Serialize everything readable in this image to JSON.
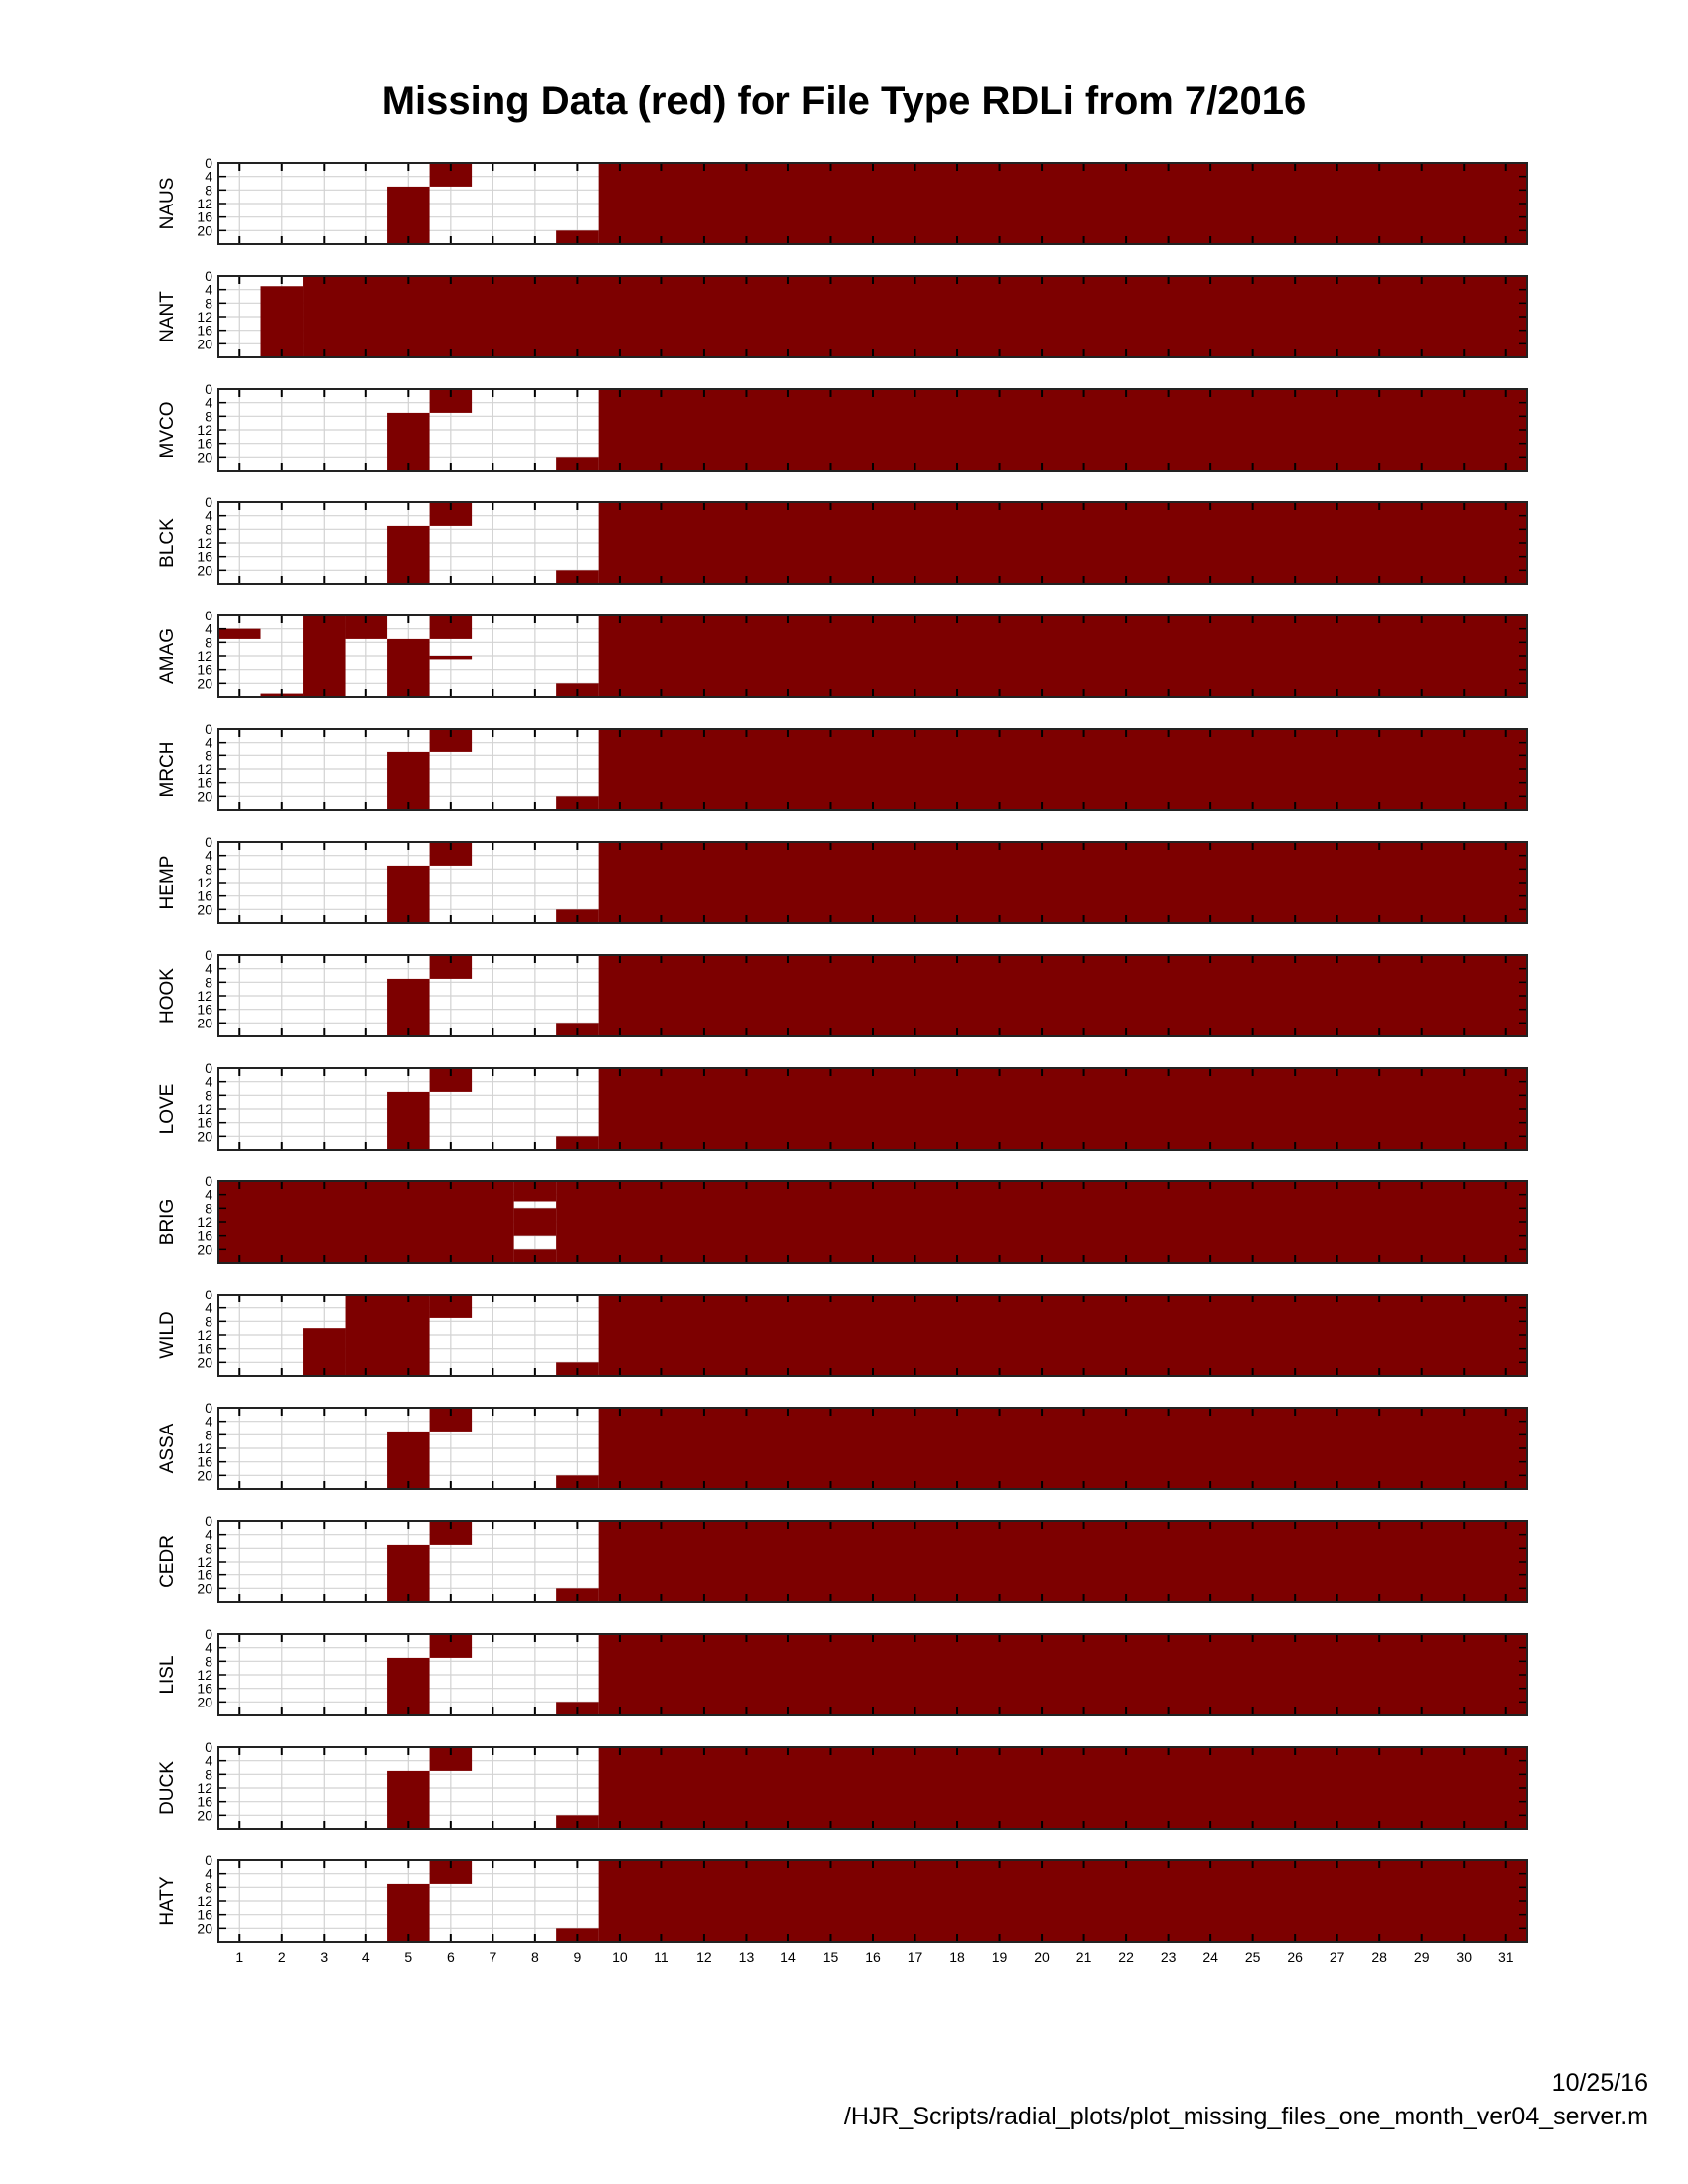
{
  "title": "Missing Data (red) for File Type RDLi from 7/2016",
  "footer": {
    "date": "10/25/16",
    "path": "/HJR_Scripts/radial_plots/plot_missing_files_one_month_ver04_server.m"
  },
  "colors": {
    "missing": "#7d0000",
    "present": "#ffffff",
    "grid": "#d2d2d2"
  },
  "chart_data": {
    "type": "heatmap",
    "title": "Missing Data (red) for File Type RDLi from 7/2016",
    "x_ticks": [
      1,
      2,
      3,
      4,
      5,
      6,
      7,
      8,
      9,
      10,
      11,
      12,
      13,
      14,
      15,
      16,
      17,
      18,
      19,
      20,
      21,
      22,
      23,
      24,
      25,
      26,
      27,
      28,
      29,
      30,
      31
    ],
    "y_ticks": [
      0,
      4,
      8,
      12,
      16,
      20
    ],
    "xlim": [
      0.5,
      31.5
    ],
    "ylim": [
      0,
      24
    ],
    "y_reversed": true,
    "grid": true,
    "missing_color": "#7d0000",
    "value_note": "rectangles list missing (red) blocks as [day_start, day_end, hour_start, hour_end]",
    "panels": [
      {
        "name": "NAUS",
        "missing": [
          [
            4.5,
            5.5,
            7,
            24
          ],
          [
            5.5,
            6.5,
            0,
            7
          ],
          [
            8.5,
            9.5,
            20,
            24
          ],
          [
            9.5,
            31.5,
            0,
            24
          ]
        ]
      },
      {
        "name": "NANT",
        "missing": [
          [
            1.5,
            2.5,
            3,
            24
          ],
          [
            2.5,
            31.5,
            0,
            24
          ]
        ]
      },
      {
        "name": "MVCO",
        "missing": [
          [
            4.5,
            5.5,
            7,
            24
          ],
          [
            5.5,
            6.5,
            0,
            7
          ],
          [
            8.5,
            9.5,
            20,
            24
          ],
          [
            9.5,
            31.5,
            0,
            24
          ]
        ]
      },
      {
        "name": "BLCK",
        "missing": [
          [
            4.5,
            5.5,
            7,
            24
          ],
          [
            5.5,
            6.5,
            0,
            7
          ],
          [
            8.5,
            9.5,
            20,
            24
          ],
          [
            9.5,
            31.5,
            0,
            24
          ]
        ]
      },
      {
        "name": "AMAG",
        "missing": [
          [
            0.5,
            1.5,
            4,
            7
          ],
          [
            1.5,
            2.5,
            23,
            24
          ],
          [
            2.5,
            3.5,
            0,
            24
          ],
          [
            3.5,
            4.5,
            0,
            7
          ],
          [
            4.5,
            5.5,
            7,
            24
          ],
          [
            5.5,
            6.5,
            0,
            7
          ],
          [
            5.5,
            6.5,
            12,
            13
          ],
          [
            8.5,
            9.5,
            20,
            24
          ],
          [
            9.5,
            31.5,
            0,
            24
          ]
        ]
      },
      {
        "name": "MRCH",
        "missing": [
          [
            4.5,
            5.5,
            7,
            24
          ],
          [
            5.5,
            6.5,
            0,
            7
          ],
          [
            8.5,
            9.5,
            20,
            24
          ],
          [
            9.5,
            31.5,
            0,
            24
          ]
        ]
      },
      {
        "name": "HEMP",
        "missing": [
          [
            4.5,
            5.5,
            7,
            24
          ],
          [
            5.5,
            6.5,
            0,
            7
          ],
          [
            8.5,
            9.5,
            20,
            24
          ],
          [
            9.5,
            31.5,
            0,
            24
          ]
        ]
      },
      {
        "name": "HOOK",
        "missing": [
          [
            4.5,
            5.5,
            7,
            24
          ],
          [
            5.5,
            6.5,
            0,
            7
          ],
          [
            8.5,
            9.5,
            20,
            24
          ],
          [
            9.5,
            31.5,
            0,
            24
          ]
        ]
      },
      {
        "name": "LOVE",
        "missing": [
          [
            4.5,
            5.5,
            7,
            24
          ],
          [
            5.5,
            6.5,
            0,
            7
          ],
          [
            8.5,
            9.5,
            20,
            24
          ],
          [
            9.5,
            31.5,
            0,
            24
          ]
        ]
      },
      {
        "name": "BRIG",
        "missing": [
          [
            0.5,
            7.5,
            0,
            24
          ],
          [
            7.5,
            8.5,
            0,
            6
          ],
          [
            7.5,
            8.5,
            8,
            16
          ],
          [
            7.5,
            8.5,
            20,
            24
          ],
          [
            8.5,
            31.5,
            0,
            24
          ]
        ]
      },
      {
        "name": "WILD",
        "missing": [
          [
            2.5,
            3.5,
            10,
            24
          ],
          [
            3.5,
            5.5,
            0,
            24
          ],
          [
            5.5,
            6.5,
            0,
            7
          ],
          [
            8.5,
            9.5,
            20,
            24
          ],
          [
            9.5,
            31.5,
            0,
            24
          ]
        ]
      },
      {
        "name": "ASSA",
        "missing": [
          [
            4.5,
            5.5,
            7,
            24
          ],
          [
            5.5,
            6.5,
            0,
            7
          ],
          [
            8.5,
            9.5,
            20,
            24
          ],
          [
            9.5,
            31.5,
            0,
            24
          ]
        ]
      },
      {
        "name": "CEDR",
        "missing": [
          [
            4.5,
            5.5,
            7,
            24
          ],
          [
            5.5,
            6.5,
            0,
            7
          ],
          [
            8.5,
            9.5,
            20,
            24
          ],
          [
            9.5,
            31.5,
            0,
            24
          ]
        ]
      },
      {
        "name": "LISL",
        "missing": [
          [
            4.5,
            5.5,
            7,
            24
          ],
          [
            5.5,
            6.5,
            0,
            7
          ],
          [
            8.5,
            9.5,
            20,
            24
          ],
          [
            9.5,
            31.5,
            0,
            24
          ]
        ]
      },
      {
        "name": "DUCK",
        "missing": [
          [
            4.5,
            5.5,
            7,
            24
          ],
          [
            5.5,
            6.5,
            0,
            7
          ],
          [
            8.5,
            9.5,
            20,
            24
          ],
          [
            9.5,
            31.5,
            0,
            24
          ]
        ]
      },
      {
        "name": "HATY",
        "missing": [
          [
            4.5,
            5.5,
            7,
            24
          ],
          [
            5.5,
            6.5,
            0,
            7
          ],
          [
            8.5,
            9.5,
            20,
            24
          ],
          [
            9.5,
            31.5,
            0,
            24
          ]
        ]
      }
    ]
  }
}
